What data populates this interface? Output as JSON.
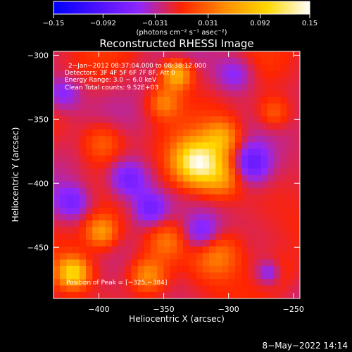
{
  "chart_data": {
    "type": "heatmap",
    "title": "Reconstructed RHESSI Image",
    "xlabel": "Heliocentric X (arcsec)",
    "ylabel": "Heliocentric Y (arcsec)",
    "xlim": [
      -435,
      -245
    ],
    "ylim": [
      -490,
      -297
    ],
    "x_ticks": [
      -400,
      -350,
      -300,
      -250
    ],
    "y_ticks": [
      -300,
      -350,
      -400,
      -450
    ],
    "x_tick_labels": [
      "−400",
      "−350",
      "−300",
      "−250"
    ],
    "y_tick_labels": [
      "−300",
      "−350",
      "−400",
      "−450"
    ],
    "colorbar": {
      "ticks": [
        -0.15,
        -0.092,
        -0.031,
        0.031,
        0.092,
        0.15
      ],
      "tick_labels": [
        "−0.15",
        "−0.092",
        "−0.031",
        "0.031",
        "0.092",
        "0.15"
      ],
      "range": [
        -0.15,
        0.15
      ],
      "unit_label": "(photons cm⁻² s⁻¹ asec⁻²)",
      "colors": [
        "#0000ff",
        "#4a10ff",
        "#8e27ff",
        "#ff2400",
        "#ff8c00",
        "#ffd800",
        "#ffffff"
      ]
    },
    "annotations": [
      "2−Jan−2012 08:37:04.000 to 08:38:12.000",
      "Detectors: 3F 4F 5F 6F 7F 8F, Att 0",
      "Energy Range: 3.0 − 6.0 keV",
      "Clean    Total counts: 9.52E+03"
    ],
    "peak_label": "Position of Peak = [−325,−384]",
    "peak": [
      -325,
      -384
    ],
    "sources": [
      [
        -325,
        -384,
        0.15,
        18
      ],
      [
        -340,
        -315,
        0.1,
        12
      ],
      [
        -305,
        -365,
        0.075,
        14
      ],
      [
        -305,
        -395,
        0.07,
        16
      ],
      [
        -420,
        -470,
        0.11,
        12
      ],
      [
        -398,
        -438,
        0.07,
        12
      ],
      [
        -397,
        -368,
        0.05,
        16
      ],
      [
        -362,
        -472,
        0.07,
        14
      ],
      [
        -310,
        -455,
        0.06,
        18
      ],
      [
        -350,
        -337,
        0.055,
        12
      ],
      [
        -265,
        -345,
        0.045,
        12
      ],
      [
        -265,
        -470,
        0.055,
        12
      ],
      [
        -348,
        -445,
        0.05,
        15
      ],
      [
        -377,
        -397,
        -0.07,
        16
      ],
      [
        -360,
        -420,
        -0.06,
        14
      ],
      [
        -283,
        -385,
        -0.07,
        16
      ],
      [
        -268,
        -470,
        -0.09,
        10
      ],
      [
        -428,
        -330,
        -0.05,
        14
      ],
      [
        -320,
        -440,
        -0.06,
        15
      ],
      [
        -295,
        -315,
        -0.05,
        15
      ],
      [
        -420,
        -415,
        -0.05,
        14
      ]
    ]
  },
  "footer": {
    "timestamp": "8−May−2022 14:14"
  }
}
